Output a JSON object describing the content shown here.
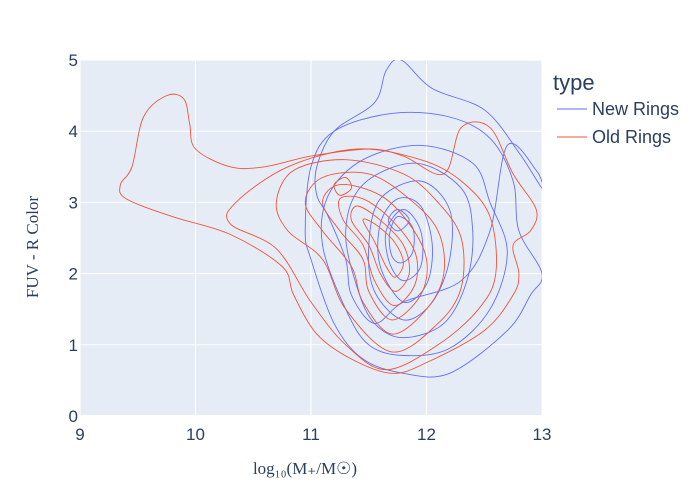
{
  "chart_data": {
    "type": "contour",
    "title": "",
    "xlabel": "log₁₀(M₊/M☉)",
    "ylabel": "FUV - R Color",
    "xlim": [
      9,
      13
    ],
    "ylim": [
      0,
      5
    ],
    "x_ticks": [
      "9",
      "10",
      "11",
      "12",
      "13"
    ],
    "y_ticks": [
      "0",
      "1",
      "2",
      "3",
      "4",
      "5"
    ],
    "grid": true,
    "legend_title": "type",
    "legend_position": "top-right",
    "series": [
      {
        "name": "New Rings",
        "color": "#636efa",
        "levels": [
          [
            [
              11.8,
              1.6
            ],
            [
              12.3,
              1.9
            ],
            [
              12.55,
              2.6
            ],
            [
              12.7,
              3.8
            ],
            [
              12.95,
              3.45
            ],
            [
              13.0,
              3.2
            ],
            [
              12.8,
              3.7
            ],
            [
              12.5,
              4.3
            ],
            [
              12.05,
              4.6
            ],
            [
              11.78,
              5.0
            ],
            [
              11.65,
              4.85
            ],
            [
              11.55,
              4.4
            ],
            [
              11.2,
              4.0
            ],
            [
              11.05,
              3.5
            ],
            [
              11.05,
              3.1
            ],
            [
              11.15,
              2.8
            ],
            [
              11.3,
              2.2
            ],
            [
              11.35,
              1.7
            ],
            [
              11.55,
              1.3
            ]
          ],
          [
            [
              11.8,
              0.6
            ],
            [
              12.2,
              0.6
            ],
            [
              12.7,
              1.2
            ],
            [
              12.9,
              1.7
            ],
            [
              13.0,
              2.0
            ],
            [
              12.8,
              2.6
            ],
            [
              12.75,
              3.3
            ],
            [
              12.55,
              3.9
            ],
            [
              12.2,
              4.2
            ],
            [
              11.7,
              4.25
            ],
            [
              11.2,
              4.0
            ],
            [
              11.0,
              3.5
            ],
            [
              10.95,
              2.6
            ],
            [
              11.0,
              2.2
            ],
            [
              11.2,
              1.3
            ],
            [
              11.45,
              0.8
            ]
          ],
          [
            [
              11.8,
              0.85
            ],
            [
              12.2,
              0.95
            ],
            [
              12.55,
              1.5
            ],
            [
              12.7,
              2.3
            ],
            [
              12.55,
              3.0
            ],
            [
              12.4,
              3.55
            ],
            [
              11.95,
              3.8
            ],
            [
              11.45,
              3.6
            ],
            [
              11.15,
              3.1
            ],
            [
              11.1,
              2.4
            ],
            [
              11.3,
              1.5
            ],
            [
              11.5,
              1.0
            ]
          ],
          [
            [
              11.8,
              1.1
            ],
            [
              12.15,
              1.3
            ],
            [
              12.35,
              1.9
            ],
            [
              12.4,
              2.6
            ],
            [
              12.3,
              3.2
            ],
            [
              11.9,
              3.55
            ],
            [
              11.45,
              3.25
            ],
            [
              11.3,
              2.6
            ],
            [
              11.4,
              1.8
            ],
            [
              11.55,
              1.3
            ]
          ],
          [
            [
              11.8,
              1.35
            ],
            [
              12.05,
              1.6
            ],
            [
              12.2,
              2.2
            ],
            [
              12.2,
              2.9
            ],
            [
              11.95,
              3.3
            ],
            [
              11.6,
              3.05
            ],
            [
              11.5,
              2.4
            ],
            [
              11.55,
              1.75
            ]
          ],
          [
            [
              11.8,
              1.6
            ],
            [
              12.0,
              1.85
            ],
            [
              12.05,
              2.4
            ],
            [
              11.95,
              2.95
            ],
            [
              11.75,
              3.05
            ],
            [
              11.6,
              2.7
            ],
            [
              11.6,
              2.1
            ]
          ],
          [
            [
              11.8,
              1.9
            ],
            [
              11.95,
              2.1
            ],
            [
              11.95,
              2.6
            ],
            [
              11.8,
              2.9
            ],
            [
              11.65,
              2.6
            ],
            [
              11.68,
              2.15
            ]
          ],
          [
            [
              11.78,
              2.15
            ],
            [
              11.88,
              2.3
            ],
            [
              11.88,
              2.65
            ],
            [
              11.75,
              2.8
            ],
            [
              11.68,
              2.55
            ],
            [
              11.7,
              2.25
            ]
          ],
          [
            [
              11.75,
              2.6
            ],
            [
              11.85,
              2.75
            ],
            [
              11.75,
              2.9
            ],
            [
              11.67,
              2.75
            ]
          ]
        ]
      },
      {
        "name": "Old Rings",
        "color": "#ef553b",
        "levels": [
          [
            [
              11.7,
              0.6
            ],
            [
              12.0,
              0.75
            ],
            [
              12.5,
              1.2
            ],
            [
              12.75,
              1.7
            ],
            [
              12.8,
              2.0
            ],
            [
              12.75,
              2.4
            ],
            [
              12.9,
              2.6
            ],
            [
              12.95,
              2.9
            ],
            [
              12.75,
              3.4
            ],
            [
              12.55,
              4.05
            ],
            [
              12.3,
              4.05
            ],
            [
              12.15,
              3.4
            ],
            [
              11.8,
              3.65
            ],
            [
              11.5,
              3.75
            ],
            [
              11.0,
              3.65
            ],
            [
              10.6,
              3.5
            ],
            [
              10.3,
              3.5
            ],
            [
              10.0,
              3.75
            ],
            [
              9.95,
              4.1
            ],
            [
              9.9,
              4.45
            ],
            [
              9.75,
              4.5
            ],
            [
              9.55,
              4.2
            ],
            [
              9.45,
              3.5
            ],
            [
              9.35,
              3.25
            ],
            [
              9.4,
              3.05
            ],
            [
              9.8,
              2.8
            ],
            [
              10.3,
              2.55
            ],
            [
              10.75,
              2.1
            ],
            [
              10.85,
              1.7
            ],
            [
              11.05,
              1.15
            ],
            [
              11.35,
              0.8
            ]
          ],
          [
            [
              11.65,
              0.65
            ],
            [
              12.1,
              1.0
            ],
            [
              12.45,
              1.5
            ],
            [
              12.6,
              2.0
            ],
            [
              12.55,
              2.8
            ],
            [
              12.3,
              3.3
            ],
            [
              11.95,
              3.6
            ],
            [
              11.4,
              3.75
            ],
            [
              10.8,
              3.5
            ],
            [
              10.35,
              3.0
            ],
            [
              10.3,
              2.7
            ],
            [
              10.7,
              2.35
            ],
            [
              11.0,
              1.6
            ],
            [
              11.3,
              1.0
            ]
          ],
          [
            [
              11.7,
              0.9
            ],
            [
              12.1,
              1.3
            ],
            [
              12.3,
              1.8
            ],
            [
              12.3,
              2.5
            ],
            [
              12.1,
              3.0
            ],
            [
              11.8,
              3.4
            ],
            [
              11.3,
              3.6
            ],
            [
              10.85,
              3.45
            ],
            [
              10.7,
              3.0
            ],
            [
              10.8,
              2.6
            ],
            [
              11.1,
              2.2
            ],
            [
              11.3,
              1.5
            ]
          ],
          [
            [
              11.7,
              1.15
            ],
            [
              12.0,
              1.5
            ],
            [
              12.15,
              2.0
            ],
            [
              12.1,
              2.6
            ],
            [
              11.85,
              3.05
            ],
            [
              11.5,
              3.4
            ],
            [
              11.1,
              3.35
            ],
            [
              10.95,
              3.0
            ],
            [
              11.1,
              2.6
            ],
            [
              11.35,
              2.1
            ],
            [
              11.45,
              1.6
            ]
          ],
          [
            [
              11.7,
              1.35
            ],
            [
              11.95,
              1.7
            ],
            [
              12.0,
              2.2
            ],
            [
              11.85,
              2.7
            ],
            [
              11.6,
              3.1
            ],
            [
              11.25,
              3.25
            ],
            [
              11.1,
              3.0
            ],
            [
              11.25,
              2.6
            ],
            [
              11.45,
              2.2
            ],
            [
              11.5,
              1.75
            ]
          ],
          [
            [
              11.72,
              1.55
            ],
            [
              11.9,
              1.85
            ],
            [
              11.9,
              2.3
            ],
            [
              11.7,
              2.75
            ],
            [
              11.45,
              3.05
            ],
            [
              11.25,
              3.05
            ],
            [
              11.28,
              2.75
            ],
            [
              11.45,
              2.4
            ],
            [
              11.55,
              1.9
            ]
          ],
          [
            [
              11.73,
              1.75
            ],
            [
              11.85,
              2.0
            ],
            [
              11.8,
              2.4
            ],
            [
              11.6,
              2.75
            ],
            [
              11.4,
              2.95
            ],
            [
              11.35,
              2.75
            ],
            [
              11.5,
              2.4
            ],
            [
              11.6,
              2.0
            ]
          ],
          [
            [
              11.73,
              1.95
            ],
            [
              11.8,
              2.15
            ],
            [
              11.72,
              2.45
            ],
            [
              11.55,
              2.7
            ],
            [
              11.45,
              2.75
            ],
            [
              11.55,
              2.45
            ],
            [
              11.65,
              2.1
            ]
          ],
          [
            [
              11.25,
              3.1
            ],
            [
              11.35,
              3.2
            ],
            [
              11.3,
              3.35
            ],
            [
              11.2,
              3.25
            ]
          ]
        ]
      }
    ]
  }
}
